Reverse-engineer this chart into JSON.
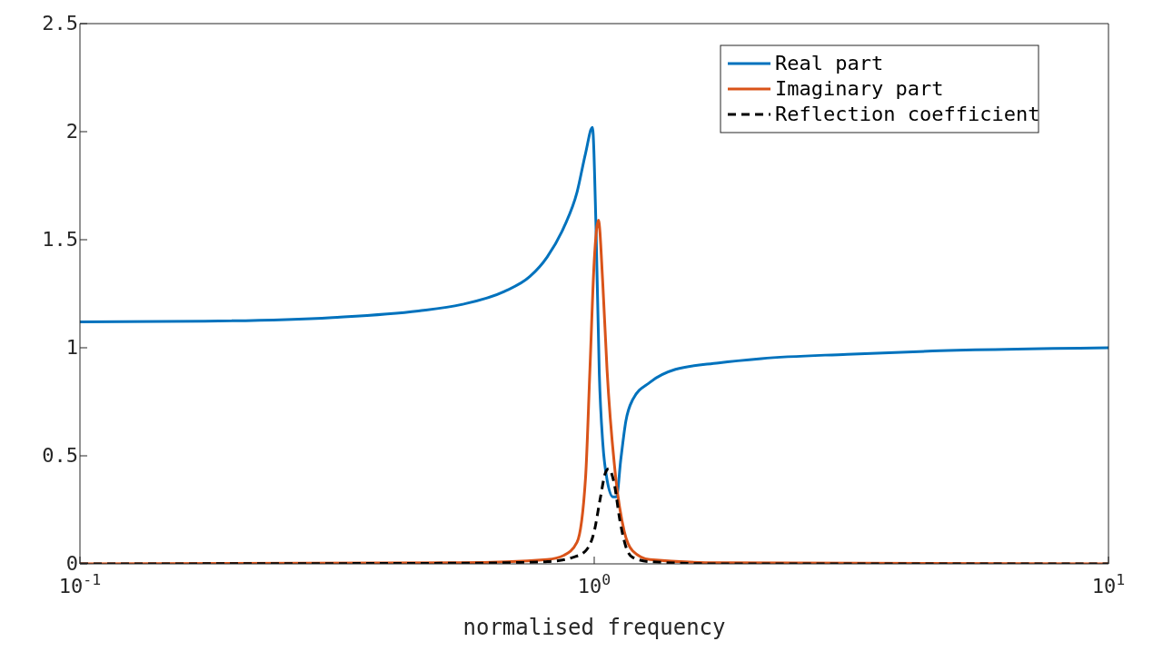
{
  "chart_data": {
    "type": "line",
    "xlabel": "normalised frequency",
    "log": "x",
    "xlim": [
      0.1,
      10
    ],
    "ylim": [
      0,
      2.5
    ],
    "xticks": [
      {
        "value": 0.1,
        "label": "10$^{-1}$"
      },
      {
        "value": 1,
        "label": "10$^{0}$"
      },
      {
        "value": 10,
        "label": "10$^{1}$"
      }
    ],
    "yticks": [
      0,
      0.5,
      1,
      1.5,
      2,
      2.5
    ],
    "grid": false,
    "legend": "top right",
    "marker": "none",
    "series": [
      {
        "name": "Real part",
        "color": "#0072bd",
        "line_style": "solid",
        "x": [
          0.1,
          0.175,
          0.31,
          0.455,
          0.552,
          0.668,
          0.75,
          0.81,
          0.874,
          0.926,
          0.962,
          0.992,
          1.008,
          1.023,
          1.039,
          1.059,
          1.088,
          1.105,
          1.126,
          1.152,
          1.188,
          1.283,
          1.439,
          1.744,
          2.113,
          3.103,
          4.55,
          10
        ],
        "values": [
          1.12,
          1.123,
          1.14,
          1.17,
          1.2,
          1.26,
          1.33,
          1.42,
          1.56,
          1.72,
          1.9,
          2.02,
          1.56,
          0.88,
          0.56,
          0.39,
          0.31,
          0.31,
          0.48,
          0.66,
          0.76,
          0.84,
          0.9,
          0.93,
          0.95,
          0.97,
          0.985,
          1.0
        ]
      },
      {
        "name": "Imaginary part",
        "color": "#d95319",
        "line_style": "solid",
        "x": [
          0.1,
          0.552,
          0.81,
          0.874,
          0.926,
          0.962,
          0.981,
          1.0,
          1.019,
          1.039,
          1.059,
          1.101,
          1.144,
          1.188,
          1.283,
          1.744,
          10
        ],
        "values": [
          0.0,
          0.005,
          0.02,
          0.04,
          0.1,
          0.4,
          0.9,
          1.4,
          1.59,
          1.3,
          0.9,
          0.4,
          0.15,
          0.06,
          0.02,
          0.005,
          0.0
        ]
      },
      {
        "name": "Reflection coefficient",
        "color": "#000000",
        "line_style": "dashed",
        "x": [
          0.1,
          0.552,
          0.81,
          0.909,
          0.962,
          1.0,
          1.027,
          1.051,
          1.067,
          1.092,
          1.122,
          1.152,
          1.188,
          1.283,
          1.744,
          10
        ],
        "values": [
          0.0,
          0.003,
          0.01,
          0.03,
          0.06,
          0.15,
          0.3,
          0.42,
          0.44,
          0.38,
          0.2,
          0.08,
          0.03,
          0.01,
          0.0,
          0.0
        ]
      }
    ]
  }
}
